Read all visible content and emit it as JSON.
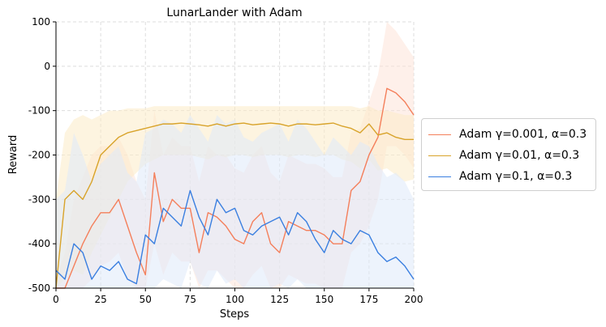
{
  "chart_data": {
    "type": "line",
    "title": "LunarLander with Adam",
    "xlabel": "Steps",
    "ylabel": "Reward",
    "xlim": [
      0,
      200
    ],
    "ylim": [
      -500,
      100
    ],
    "x_ticks": [
      "0",
      "25",
      "50",
      "75",
      "100",
      "125",
      "150",
      "175",
      "200"
    ],
    "y_ticks": [
      "-500",
      "-400",
      "-300",
      "-200",
      "-100",
      "0",
      "100"
    ],
    "grid": true,
    "legend_position": "right, outside plot",
    "x": [
      0,
      5,
      10,
      15,
      20,
      25,
      30,
      35,
      40,
      45,
      50,
      55,
      60,
      65,
      70,
      75,
      80,
      85,
      90,
      95,
      100,
      105,
      110,
      115,
      120,
      125,
      130,
      135,
      140,
      145,
      150,
      155,
      160,
      165,
      170,
      175,
      180,
      185,
      190,
      195,
      200
    ],
    "series": [
      {
        "name": "Adam γ=0.001, α=0.3",
        "color": "#f47f5b",
        "band_color": "#fde3d9",
        "values": [
          -500,
          -500,
          -450,
          -400,
          -360,
          -330,
          -330,
          -300,
          -360,
          -420,
          -470,
          -240,
          -350,
          -300,
          -320,
          -320,
          -420,
          -330,
          -340,
          -360,
          -390,
          -400,
          -350,
          -330,
          -400,
          -420,
          -350,
          -360,
          -370,
          -370,
          -380,
          -400,
          -400,
          -280,
          -260,
          -200,
          -160,
          -50,
          -60,
          -80,
          -110
        ],
        "band_low": [
          -500,
          -500,
          -500,
          -500,
          -480,
          -450,
          -440,
          -420,
          -480,
          -500,
          -500,
          -400,
          -470,
          -420,
          -440,
          -440,
          -500,
          -460,
          -460,
          -480,
          -500,
          -500,
          -470,
          -450,
          -500,
          -500,
          -470,
          -480,
          -490,
          -490,
          -500,
          -500,
          -500,
          -420,
          -400,
          -360,
          -300,
          -180,
          -180,
          -200,
          -230
        ],
        "band_high": [
          -480,
          -420,
          -300,
          -250,
          -200,
          -180,
          -180,
          -160,
          -200,
          -260,
          -300,
          -100,
          -200,
          -160,
          -180,
          -180,
          -260,
          -180,
          -200,
          -200,
          -230,
          -240,
          -200,
          -180,
          -240,
          -260,
          -200,
          -210,
          -220,
          -220,
          -230,
          -250,
          -250,
          -150,
          -140,
          -80,
          -20,
          100,
          80,
          50,
          20
        ]
      },
      {
        "name": "Adam γ=0.01, α=0.3",
        "color": "#d8a32a",
        "band_color": "#fbebc7",
        "values": [
          -500,
          -300,
          -280,
          -300,
          -260,
          -200,
          -180,
          -160,
          -150,
          -145,
          -140,
          -135,
          -130,
          -130,
          -128,
          -130,
          -132,
          -135,
          -130,
          -135,
          -130,
          -128,
          -132,
          -130,
          -128,
          -130,
          -135,
          -130,
          -130,
          -132,
          -130,
          -128,
          -135,
          -140,
          -150,
          -130,
          -155,
          -150,
          -160,
          -165,
          -165
        ],
        "band_low": [
          -500,
          -480,
          -460,
          -470,
          -420,
          -380,
          -340,
          -300,
          -260,
          -240,
          -220,
          -210,
          -200,
          -200,
          -200,
          -200,
          -205,
          -210,
          -200,
          -205,
          -200,
          -200,
          -205,
          -200,
          -200,
          -200,
          -205,
          -200,
          -200,
          -205,
          -200,
          -200,
          -210,
          -215,
          -230,
          -210,
          -235,
          -230,
          -245,
          -260,
          -255
        ],
        "band_high": [
          -300,
          -150,
          -120,
          -110,
          -120,
          -110,
          -100,
          -100,
          -95,
          -95,
          -95,
          -90,
          -90,
          -90,
          -90,
          -90,
          -90,
          -90,
          -90,
          -90,
          -90,
          -90,
          -90,
          -90,
          -90,
          -90,
          -90,
          -90,
          -90,
          -90,
          -90,
          -90,
          -90,
          -90,
          -95,
          -90,
          -100,
          -100,
          -105,
          -110,
          -110
        ]
      },
      {
        "name": "Adam γ=0.1, α=0.3",
        "color": "#3a7fe0",
        "band_color": "#dfe9fa",
        "values": [
          -460,
          -480,
          -400,
          -420,
          -480,
          -450,
          -460,
          -440,
          -480,
          -490,
          -380,
          -400,
          -320,
          -340,
          -360,
          -280,
          -340,
          -380,
          -300,
          -330,
          -320,
          -370,
          -380,
          -360,
          -350,
          -340,
          -380,
          -330,
          -350,
          -390,
          -420,
          -370,
          -390,
          -400,
          -370,
          -380,
          -420,
          -440,
          -430,
          -450,
          -480
        ],
        "band_low": [
          -500,
          -500,
          -500,
          -500,
          -500,
          -500,
          -500,
          -500,
          -500,
          -500,
          -500,
          -500,
          -480,
          -490,
          -500,
          -440,
          -490,
          -500,
          -460,
          -490,
          -480,
          -500,
          -500,
          -500,
          -500,
          -490,
          -500,
          -480,
          -500,
          -500,
          -500,
          -500,
          -500,
          -500,
          -500,
          -500,
          -500,
          -500,
          -500,
          -500,
          -500
        ],
        "band_high": [
          -300,
          -280,
          -150,
          -200,
          -260,
          -220,
          -200,
          -180,
          -240,
          -260,
          -150,
          -140,
          -120,
          -130,
          -150,
          -110,
          -140,
          -170,
          -110,
          -130,
          -120,
          -160,
          -170,
          -150,
          -140,
          -130,
          -170,
          -120,
          -140,
          -170,
          -200,
          -160,
          -180,
          -200,
          -170,
          -180,
          -220,
          -250,
          -240,
          -260,
          -300
        ]
      }
    ]
  }
}
